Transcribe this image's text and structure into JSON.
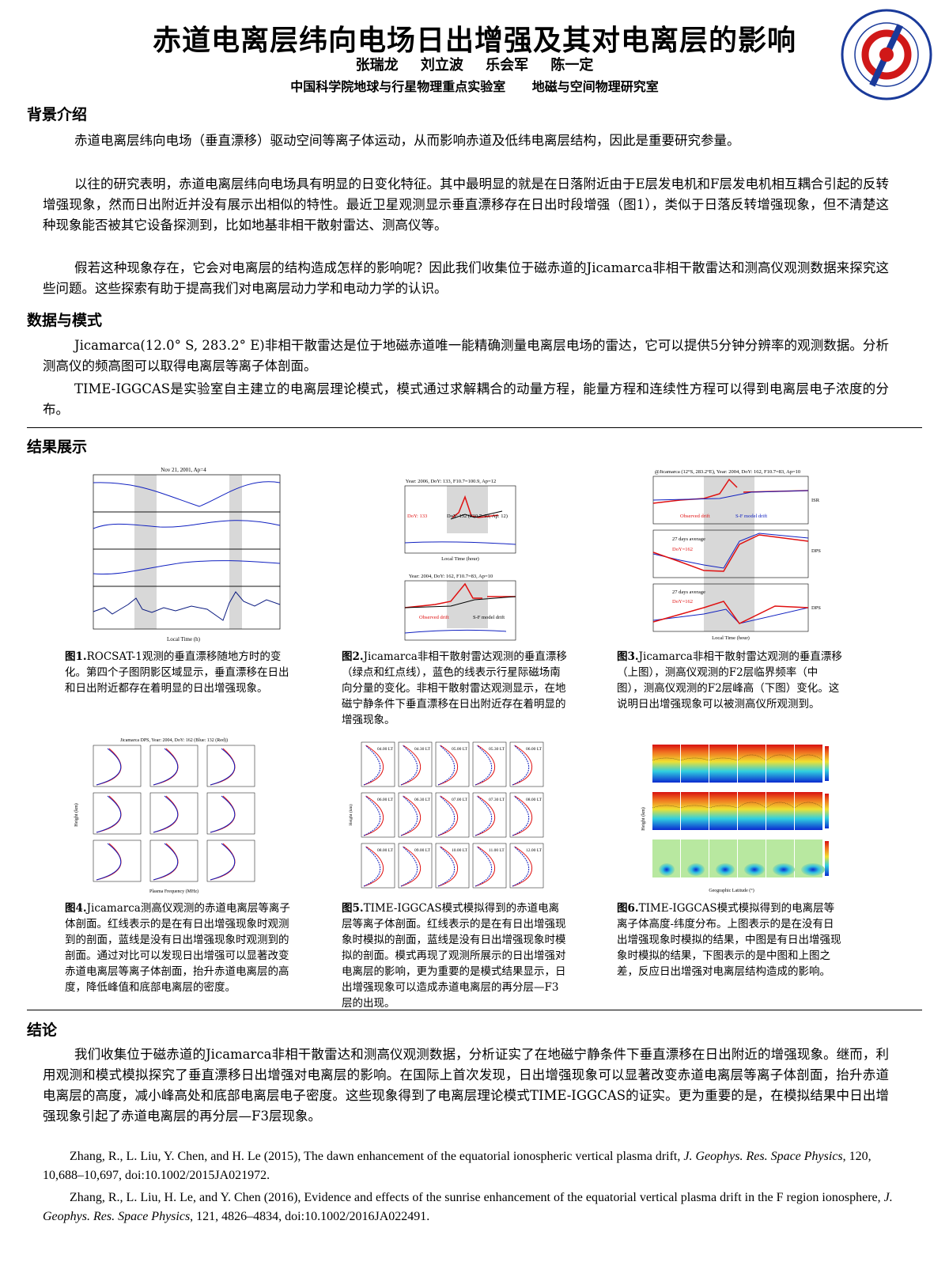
{
  "header": {
    "title": "赤道电离层纬向电场日出增强及其对电离层的影响",
    "authors": "张瑞龙 刘立波 乐会军 陈一定",
    "affiliation": "中国科学院地球与行星物理重点实验室 地磁与空间物理研究室",
    "logo_text": "Key Laboratory of Earth and Planetary Physics, CAS"
  },
  "background": {
    "heading": "背景介绍",
    "paragraphs": [
      "赤道电离层纬向电场（垂直漂移）驱动空间等离子体运动，从而影响赤道及低纬电离层结构，因此是重要研究参量。",
      "以往的研究表明，赤道电离层纬向电场具有明显的日变化特征。其中最明显的就是在日落附近由于E层发电机和F层发电机相互耦合引起的反转增强现象，然而日出附近并没有展示出相似的特性。最近卫星观测显示垂直漂移存在日出时段增强（图1），类似于日落反转增强现象，但不清楚这种现象能否被其它设备探测到，比如地基非相干散射雷达、测高仪等。",
      "假若这种现象存在，它会对电离层的结构造成怎样的影响呢？因此我们收集位于磁赤道的Jicamarca非相干散雷达和测高仪观测数据来探究这些问题。这些探索有助于提高我们对电离层动力学和电动力学的认识。"
    ]
  },
  "data_model": {
    "heading": "数据与模式",
    "paragraphs": [
      "Jicamarca(12.0° S, 283.2° E)非相干散雷达是位于地磁赤道唯一能精确测量电离层电场的雷达，它可以提供5分钟分辨率的观测数据。分析测高仪的频高图可以取得电离层等离子体剖面。",
      "TIME-IGGCAS是实验室自主建立的电离层理论模式，模式通过求解耦合的动量方程，能量方程和连续性方程可以得到电离层电子浓度的分布。"
    ]
  },
  "results": {
    "heading": "结果展示",
    "figures": [
      {
        "label": "图1.",
        "caption": "ROCSAT-1观测的垂直漂移随地方时的变化。第四个子图阴影区域显示，垂直漂移在日出和日出附近都存在着明显的日出增强现象。",
        "title": "Nov 21, 2001, Ap=4",
        "xlabel": "Local Time (h)"
      },
      {
        "label": "图2.",
        "caption": "Jicamarca非相干散射雷达观测的垂直漂移（绿点和红点线），蓝色的线表示行星际磁场南向分量的变化。非相干散射雷达观测显示，在地磁宁静条件下垂直漂移在日出附近存在着明显的增强现象。",
        "title_top": "Year: 2006, DoY: 133, F10.7=100.9, Ap=12",
        "title_bottom": "Year: 2004, DoY: 162, F10.7=83, Ap=10",
        "legend_top": [
          "DoY: 133",
          "DoY: 132 (F10.7: 93, Ap: 12)"
        ],
        "legend_bottom": [
          "Observed drift",
          "S-F model drift"
        ],
        "xlabel": "Local Time (hour)"
      },
      {
        "label": "图3.",
        "caption": "Jicamarca非相干散射雷达观测的垂直漂移（上图），测高仪观测的F2层临界频率（中图），测高仪观测的F2层峰高（下图）变化。这说明日出增强现象可以被测高仪所观测到。",
        "title": "@Jicamarca (12°S, 283.2°E), Year: 2004, DoY: 162, F10.7=83, Ap=10",
        "legend_top": [
          "Observed drift",
          "S-F model drift"
        ],
        "legend_mid": [
          "27 days average",
          "DoY=162"
        ],
        "tags": [
          "ISR",
          "DPS",
          "DPS"
        ],
        "xlabel": "Local Time (hour)"
      },
      {
        "label": "图4.",
        "caption": "Jicamarca测高仪观测的赤道电离层等离子体剖面。红线表示的是在有日出增强现象时观测到的剖面，蓝线是没有日出增强现象时观测到的剖面。通过对比可以发现日出增强可以显著改变赤道电离层等离子体剖面，抬升赤道电离层的高度，降低峰值和底部电离层的密度。",
        "title": "Jicamarca DPS, Year: 2004, DoY: 162 (Blue: 132 (Red))",
        "xlabel": "Plasma Frequency (MHz)",
        "ylabel": "Height (km)"
      },
      {
        "label": "图5.",
        "caption": "TIME-IGGCAS模式模拟得到的赤道电离层等离子体剖面。红线表示的是在有日出增强现象时模拟的剖面，蓝线是没有日出增强现象时模拟的剖面。模式再现了观测所展示的日出增强对电离层的影响，更为重要的是模式结果显示，日出增强现象可以造成赤道电离层的再分层—F3层的出现。",
        "lt_labels": [
          "04.00 LT",
          "04.30 LT",
          "05.00 LT",
          "05.30 LT",
          "06.00 LT",
          "06.00 LT",
          "06.30 LT",
          "07.00 LT",
          "07.30 LT",
          "08.00 LT",
          "08.00 LT",
          "09.00 LT",
          "10.00 LT",
          "11.00 LT",
          "12.00 LT"
        ],
        "ylabel": "Height (km)"
      },
      {
        "label": "图6.",
        "caption": "TIME-IGGCAS模式模拟得到的电离层等离子体高度-纬度分布。上图表示的是在没有日出增强现象时模拟的结果，中图是有日出增强现象时模拟的结果，下图表示的是中图和上图之差，反应日出增强对电离层结构造成的影响。",
        "xlabel": "Geographic Latitude (°)",
        "ylabel": "Height (km)"
      }
    ]
  },
  "conclusion": {
    "heading": "结论",
    "paragraph": "我们收集位于磁赤道的Jicamarca非相干散雷达和测高仪观测数据，分析证实了在地磁宁静条件下垂直漂移在日出附近的增强现象。继而，利用观测和模式模拟探究了垂直漂移日出增强对电离层的影响。在国际上首次发现，日出增强现象可以显著改变赤道电离层等离子体剖面，抬升赤道电离层的高度，减小峰高处和底部电离层电子密度。这些现象得到了电离层理论模式TIME-IGGCAS的证实。更为重要的是，在模拟结果中日出增强现象引起了赤道电离层的再分层—F3层现象。"
  },
  "references": [
    {
      "text": "Zhang, R., L. Liu, Y. Chen, and H. Le (2015), The dawn enhancement of the equatorial ionospheric vertical plasma drift, ",
      "journal": "J. Geophys. Res. Space Physics",
      "tail": ", 120, 10,688–10,697, doi:10.1002/2015JA021972."
    },
    {
      "text": "Zhang, R., L. Liu, H. Le, and Y. Chen (2016), Evidence and effects of the sunrise enhancement of the equatorial vertical plasma drift in the F region ionosphere, ",
      "journal": "J. Geophys. Res. Space Physics",
      "tail": ", 121, 4826–4834, doi:10.1002/2016JA022491."
    }
  ],
  "colors": {
    "observed": "#e01010",
    "model_blue": "#1020c0",
    "data_green": "#20d020",
    "shade": "#d8d8d8",
    "logo_blue": "#1a3a9a",
    "logo_red": "#d01818"
  }
}
